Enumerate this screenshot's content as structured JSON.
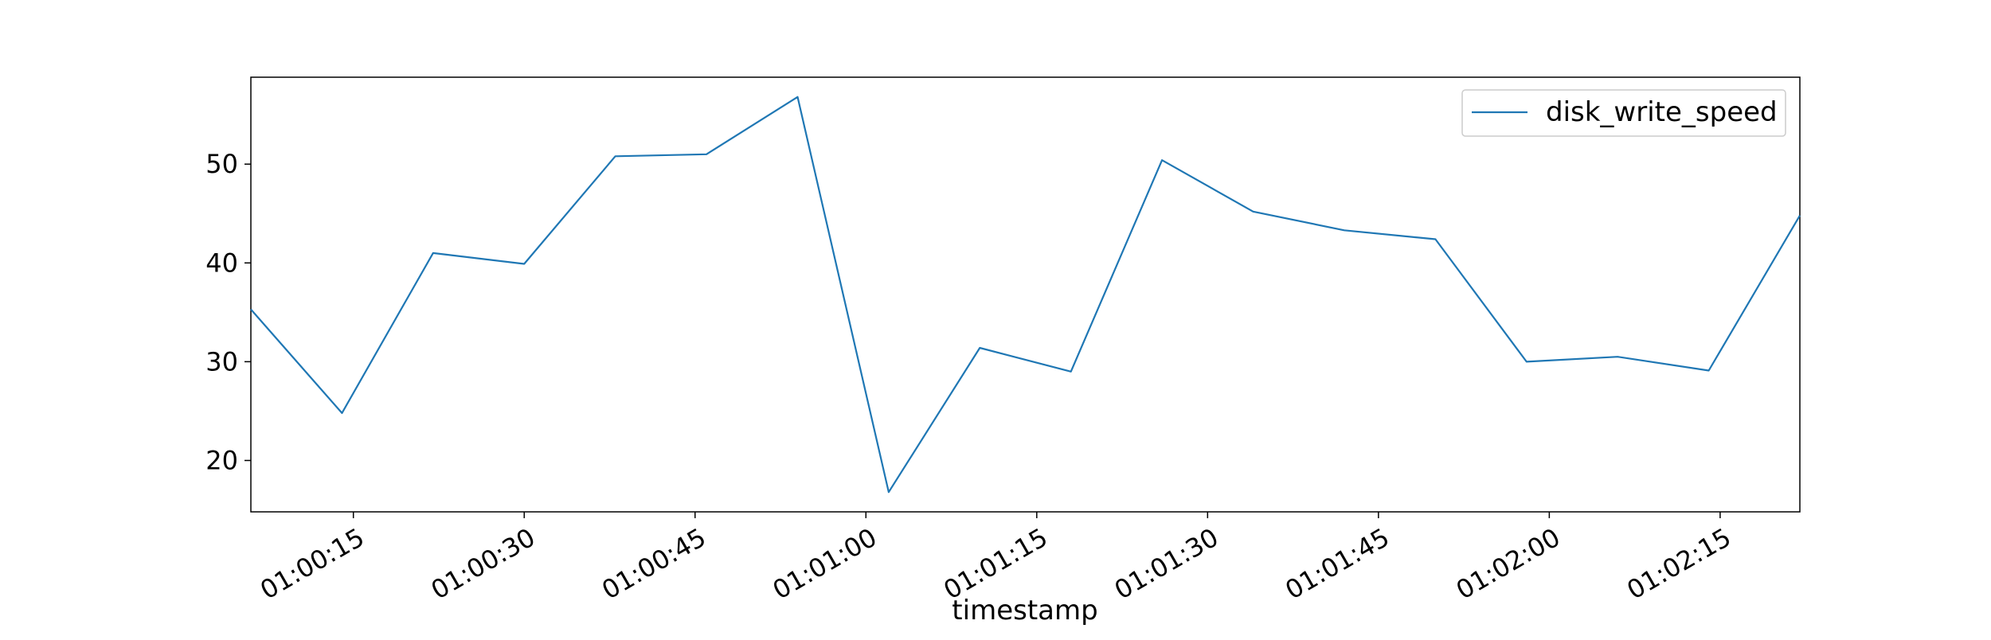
{
  "chart_data": {
    "type": "line",
    "title": "",
    "xlabel": "timestamp",
    "ylabel": "",
    "x": [
      "01:00:06",
      "01:00:14",
      "01:00:22",
      "01:00:30",
      "01:00:38",
      "01:00:46",
      "01:00:54",
      "01:01:02",
      "01:01:10",
      "01:01:18",
      "01:01:26",
      "01:01:34",
      "01:01:42",
      "01:01:50",
      "01:01:58",
      "01:02:06",
      "01:02:14",
      "01:02:22"
    ],
    "series": [
      {
        "name": "disk_write_speed",
        "color": "#1f77b4",
        "values": [
          35.3,
          24.8,
          41.0,
          39.9,
          50.8,
          51.0,
          56.8,
          16.8,
          31.4,
          29.0,
          50.4,
          45.2,
          43.3,
          42.4,
          30.0,
          30.5,
          29.1,
          44.8
        ]
      }
    ],
    "xlim": [
      "01:00:06",
      "01:02:22"
    ],
    "ylim": [
      14.8,
      58.8
    ],
    "x_ticks": [
      "01:00:15",
      "01:00:30",
      "01:00:45",
      "01:01:00",
      "01:01:15",
      "01:01:30",
      "01:01:45",
      "01:02:00",
      "01:02:15"
    ],
    "y_ticks": [
      20,
      30,
      40,
      50
    ],
    "grid": false,
    "legend_position": "top-right"
  }
}
